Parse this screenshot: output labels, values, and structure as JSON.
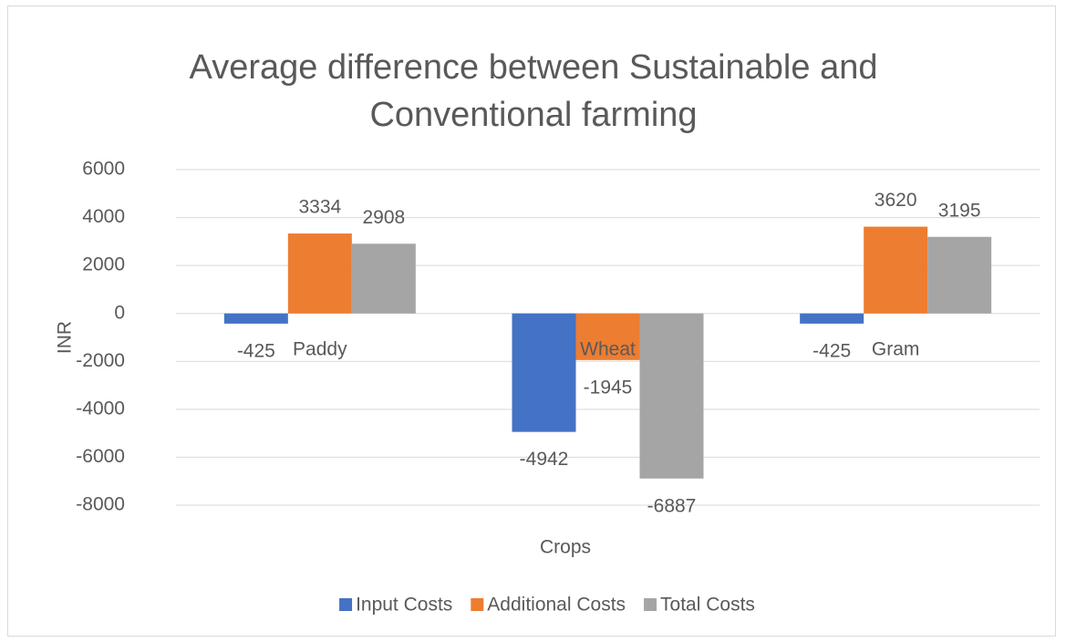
{
  "chart_data": {
    "type": "bar",
    "title": "Average difference between Sustainable and Conventional farming",
    "x_label": "Crops",
    "y_label": "INR",
    "categories": [
      "Paddy",
      "Wheat",
      "Gram"
    ],
    "series": [
      {
        "name": "Input Costs",
        "color": "#4472c4",
        "values": [
          -425,
          -4942,
          -425
        ]
      },
      {
        "name": "Additional Costs",
        "color": "#ed7d31",
        "values": [
          3334,
          -1945,
          3620
        ]
      },
      {
        "name": "Total Costs",
        "color": "#a5a5a5",
        "values": [
          2908,
          -6887,
          3195
        ]
      }
    ],
    "ylim": [
      -8000,
      6000
    ],
    "yticks": [
      -8000,
      -6000,
      -4000,
      -2000,
      0,
      2000,
      4000,
      6000
    ],
    "grid": true,
    "legend": "bottom"
  }
}
